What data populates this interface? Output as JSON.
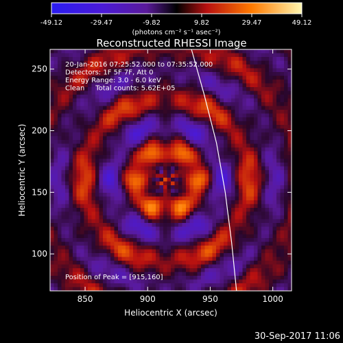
{
  "chart_data": {
    "type": "heatmap",
    "title": "Reconstructed RHESSI Image",
    "xlabel": "Heliocentric X (arcsec)",
    "ylabel": "Heliocentric Y (arcsec)",
    "xlim": [
      822,
      1015
    ],
    "ylim": [
      70,
      266
    ],
    "x_ticks": [
      850,
      900,
      950,
      1000
    ],
    "y_ticks": [
      100,
      150,
      200,
      250
    ],
    "colorbar": {
      "ticks": [
        "-49.12",
        "-29.47",
        "-9.82",
        "9.82",
        "29.47",
        "49.12"
      ],
      "range": [
        -49.12,
        49.12
      ],
      "unit_label": "(photons cm⁻² s⁻¹ asec⁻²)",
      "colors": [
        "#2a1cf0",
        "#7a20b0",
        "#000000",
        "#b81010",
        "#ff7a00",
        "#fff6b0"
      ]
    },
    "info_lines": [
      "20-Jan-2016 07:25:52.000 to 07:35:52.000",
      "Detectors: 1F 5F 7F, Att 0",
      "Energy Range: 3.0 - 6.0 keV",
      "Clean     Total counts: 5.62E+05"
    ],
    "peak_label": "Position of Peak = [915,160]",
    "peak": {
      "x": 915,
      "y": 160,
      "value": 49.12
    },
    "limb_curve": [
      [
        935,
        266
      ],
      [
        945,
        230
      ],
      [
        955,
        190
      ],
      [
        962,
        150
      ],
      [
        967,
        110
      ],
      [
        971,
        70
      ]
    ]
  },
  "footer": {
    "timestamp": "30-Sep-2017 11:06"
  }
}
